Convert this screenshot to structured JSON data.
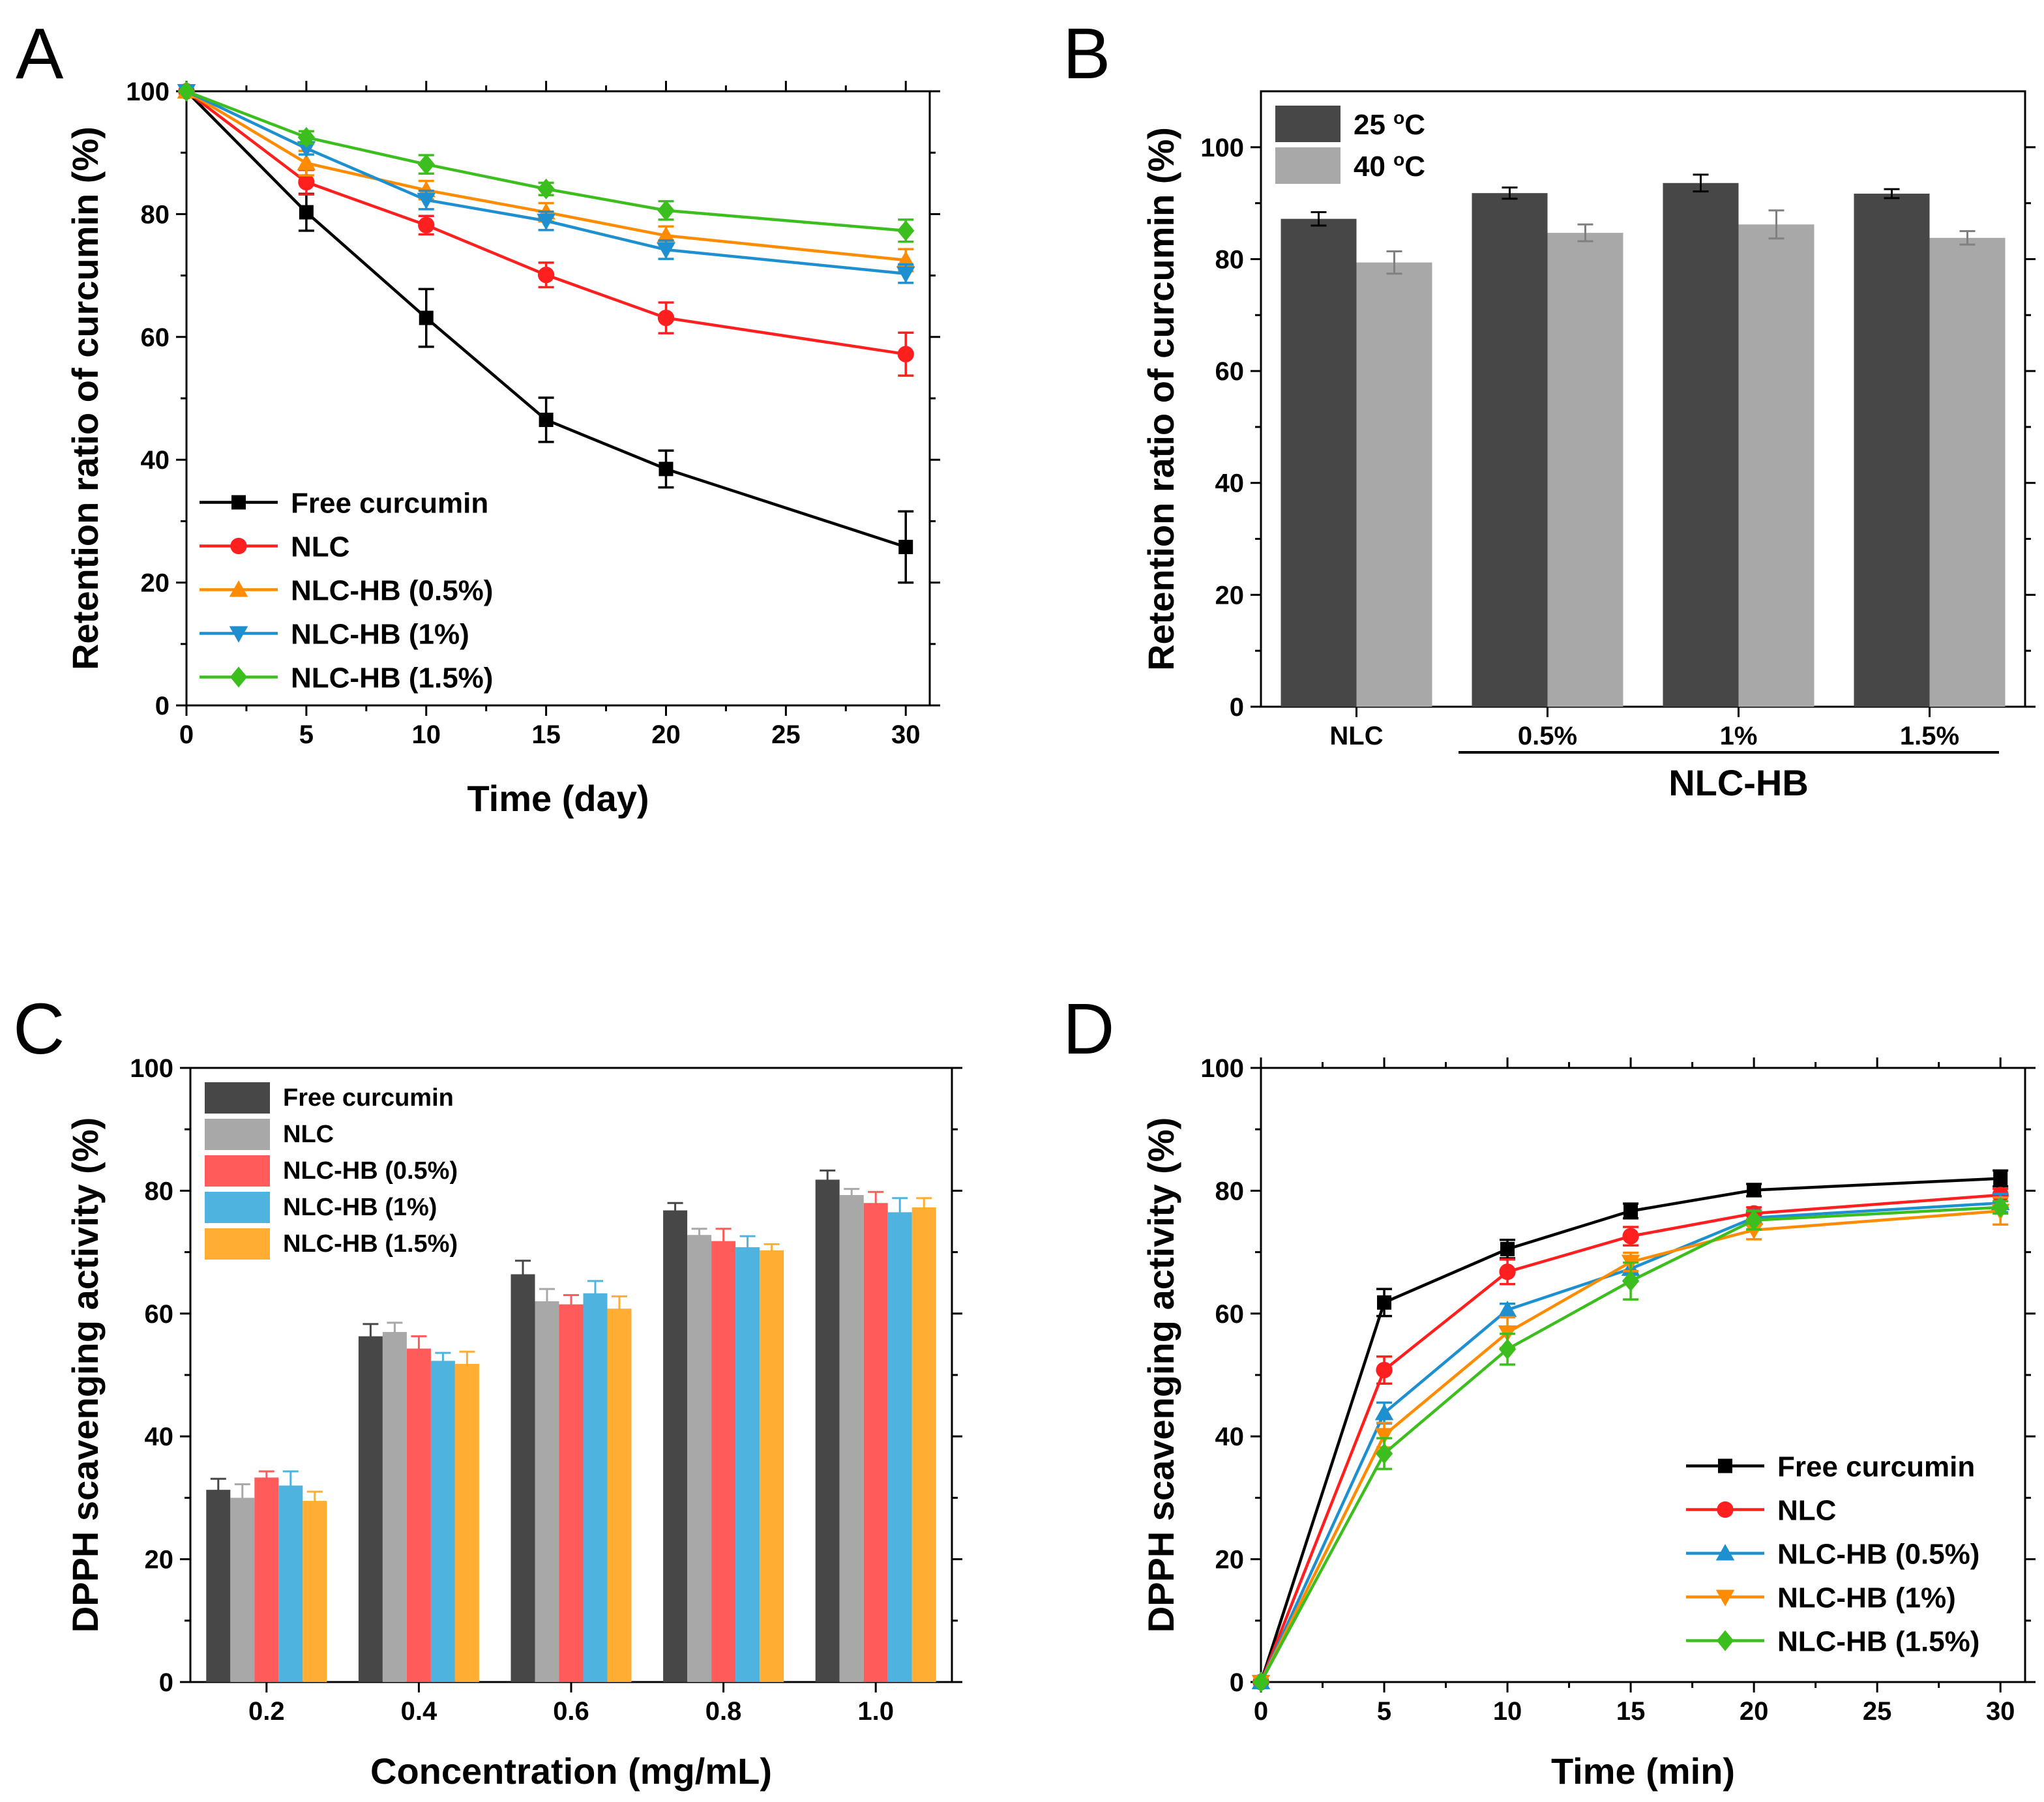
{
  "chart_data": [
    {
      "panel": "A",
      "type": "line",
      "xlabel": "Time (day)",
      "ylabel": "Retention ratio of curcumin (%)",
      "xlim": [
        0,
        31
      ],
      "ylim": [
        0,
        100
      ],
      "xticks": [
        0,
        5,
        10,
        15,
        20,
        25,
        30
      ],
      "yticks": [
        0,
        20,
        40,
        60,
        80,
        100
      ],
      "x": [
        0,
        5,
        10,
        15,
        20,
        30
      ],
      "legend_position": "bottom-left",
      "series": [
        {
          "name": "Free curcumin",
          "color": "#000000",
          "marker": "square",
          "values": [
            100,
            80.3,
            63.1,
            46.5,
            38.5,
            25.8
          ],
          "errors": [
            0,
            3.0,
            4.7,
            3.6,
            3.0,
            5.8
          ]
        },
        {
          "name": "NLC",
          "color": "#ff1f1f",
          "marker": "circle",
          "values": [
            100,
            85.2,
            78.2,
            70.1,
            63.1,
            57.2
          ],
          "errors": [
            0,
            2.0,
            1.5,
            2.0,
            2.5,
            3.5
          ]
        },
        {
          "name": "NLC-HB (0.5%)",
          "color": "#ff8c00",
          "marker": "triangle-up",
          "values": [
            100,
            88.3,
            83.9,
            80.3,
            76.5,
            72.5
          ],
          "errors": [
            0,
            2.0,
            1.5,
            1.5,
            1.5,
            1.8
          ]
        },
        {
          "name": "NLC-HB (1%)",
          "color": "#1e90d0",
          "marker": "triangle-down",
          "values": [
            100,
            90.7,
            82.3,
            78.9,
            74.2,
            70.3
          ],
          "errors": [
            0,
            1.0,
            1.5,
            1.5,
            1.5,
            1.5
          ]
        },
        {
          "name": "NLC-HB (1.5%)",
          "color": "#3cbf1e",
          "marker": "diamond",
          "values": [
            100,
            92.5,
            88.1,
            84.1,
            80.6,
            77.3
          ],
          "errors": [
            0,
            1.0,
            1.5,
            1.0,
            1.5,
            1.8
          ]
        }
      ]
    },
    {
      "panel": "B",
      "type": "bar",
      "ylabel": "Retention ratio of curcumin (%)",
      "ylim": [
        0,
        110
      ],
      "yticks": [
        0,
        20,
        40,
        60,
        80,
        100
      ],
      "categories": [
        "NLC",
        "0.5%",
        "1%",
        "1.5%"
      ],
      "group_label": "NLC-HB",
      "legend_position": "top-left",
      "series": [
        {
          "name": "25 °C",
          "legend_base": "25 ",
          "legend_sup": "o",
          "legend_unit": "C",
          "color": "#474747",
          "error_color": "#000000",
          "values": [
            87.2,
            91.8,
            93.6,
            91.7
          ],
          "errors": [
            1.2,
            1.0,
            1.5,
            0.8
          ]
        },
        {
          "name": "40 °C",
          "legend_base": "40 ",
          "legend_sup": "o",
          "legend_unit": "C",
          "color": "#a8a8a8",
          "error_color": "#808080",
          "values": [
            79.4,
            84.7,
            86.2,
            83.8
          ],
          "errors": [
            2.0,
            1.5,
            2.5,
            1.2
          ]
        }
      ]
    },
    {
      "panel": "C",
      "type": "bar",
      "xlabel": "Concentration (mg/mL)",
      "ylabel": "DPPH scavenging activity (%)",
      "ylim": [
        0,
        100
      ],
      "yticks": [
        0,
        20,
        40,
        60,
        80,
        100
      ],
      "categories": [
        "0.2",
        "0.4",
        "0.6",
        "0.8",
        "1.0"
      ],
      "legend_position": "top-left",
      "series": [
        {
          "name": "Free curcumin",
          "color": "#474747",
          "values": [
            31.3,
            56.3,
            66.4,
            76.8,
            81.8
          ],
          "errors": [
            1.8,
            2.0,
            2.2,
            1.2,
            1.5
          ]
        },
        {
          "name": "NLC",
          "color": "#a8a8a8",
          "values": [
            30.0,
            57.0,
            62.0,
            72.8,
            79.3
          ],
          "errors": [
            2.2,
            1.5,
            2.0,
            1.0,
            1.0
          ]
        },
        {
          "name": "NLC-HB (0.5%)",
          "color": "#ff5b5b",
          "values": [
            33.3,
            54.3,
            61.5,
            71.8,
            78.0
          ],
          "errors": [
            1.0,
            2.0,
            1.5,
            2.0,
            1.8
          ]
        },
        {
          "name": "NLC-HB (1%)",
          "color": "#4fb3e0",
          "values": [
            32.0,
            52.3,
            63.3,
            70.8,
            76.5
          ],
          "errors": [
            2.3,
            1.3,
            2.0,
            1.8,
            2.3
          ]
        },
        {
          "name": "NLC-HB (1.5%)",
          "color": "#ffad33",
          "values": [
            29.5,
            51.8,
            60.8,
            70.3,
            77.3
          ],
          "errors": [
            1.5,
            2.0,
            2.0,
            1.0,
            1.5
          ]
        }
      ]
    },
    {
      "panel": "D",
      "type": "line",
      "xlabel": "Time (min)",
      "ylabel": "DPPH scavenging activity (%)",
      "xlim": [
        0,
        31
      ],
      "ylim": [
        0,
        100
      ],
      "xticks": [
        0,
        5,
        10,
        15,
        20,
        25,
        30
      ],
      "yticks": [
        0,
        20,
        40,
        60,
        80,
        100
      ],
      "x": [
        0,
        5,
        10,
        15,
        20,
        30
      ],
      "legend_position": "bottom-right",
      "series": [
        {
          "name": "Free curcumin",
          "color": "#000000",
          "marker": "square",
          "values": [
            0,
            61.8,
            70.5,
            76.7,
            80.1,
            82.0
          ],
          "errors": [
            0,
            2.2,
            1.5,
            1.2,
            1.0,
            1.3
          ]
        },
        {
          "name": "NLC",
          "color": "#ff1f1f",
          "marker": "circle",
          "values": [
            0,
            50.8,
            66.8,
            72.6,
            76.3,
            79.3
          ],
          "errors": [
            0,
            2.2,
            2.0,
            1.5,
            1.0,
            1.0
          ]
        },
        {
          "name": "NLC-HB (0.5%)",
          "color": "#1e90d0",
          "marker": "triangle-up",
          "values": [
            0,
            43.8,
            60.6,
            67.3,
            75.6,
            78.0
          ],
          "errors": [
            0,
            1.7,
            1.0,
            2.0,
            1.2,
            1.5
          ]
        },
        {
          "name": "NLC-HB (1%)",
          "color": "#ff8c00",
          "marker": "triangle-down",
          "values": [
            0,
            40.2,
            56.9,
            68.4,
            73.6,
            76.7
          ],
          "errors": [
            0,
            2.0,
            2.5,
            1.5,
            1.5,
            2.2
          ]
        },
        {
          "name": "NLC-HB (1.5%)",
          "color": "#3cbf1e",
          "marker": "diamond",
          "values": [
            0,
            37.2,
            54.2,
            65.3,
            75.2,
            77.3
          ],
          "errors": [
            0,
            2.5,
            2.5,
            3.0,
            1.5,
            1.0
          ]
        }
      ]
    }
  ]
}
